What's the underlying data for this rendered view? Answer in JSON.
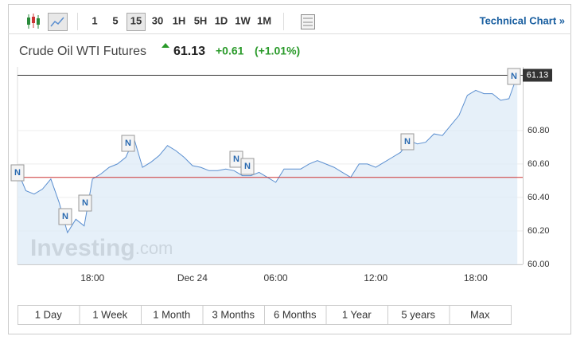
{
  "toolbar": {
    "intervals": [
      "1",
      "5",
      "15",
      "30",
      "1H",
      "5H",
      "1D",
      "1W",
      "1M"
    ],
    "selected": 2,
    "link": "Technical Chart »"
  },
  "header": {
    "instrument": "Crude Oil WTI Futures",
    "last": "61.13",
    "change": "+0.61",
    "change_pct": "(+1.01%)"
  },
  "chart_data": {
    "type": "area",
    "categories": [
      null,
      null,
      null,
      null,
      null,
      null,
      null,
      null,
      null,
      "18:00",
      null,
      null,
      null,
      null,
      null,
      null,
      null,
      null,
      null,
      null,
      null,
      "Dec 24",
      null,
      null,
      null,
      null,
      null,
      null,
      null,
      null,
      null,
      "06:00",
      null,
      null,
      null,
      null,
      null,
      null,
      null,
      null,
      null,
      null,
      null,
      "12:00",
      null,
      null,
      null,
      null,
      null,
      null,
      null,
      null,
      null,
      null,
      null,
      "18:00",
      null,
      null,
      null,
      null,
      null
    ],
    "values": [
      60.56,
      60.44,
      60.42,
      60.45,
      60.51,
      60.37,
      60.19,
      60.27,
      60.23,
      60.51,
      60.54,
      60.58,
      60.6,
      60.64,
      60.75,
      60.58,
      60.61,
      60.65,
      60.71,
      60.68,
      60.64,
      60.59,
      60.58,
      60.56,
      60.56,
      60.57,
      60.56,
      60.53,
      60.53,
      60.55,
      60.52,
      60.49,
      60.57,
      60.57,
      60.57,
      60.6,
      60.62,
      60.6,
      60.58,
      60.55,
      60.52,
      60.6,
      60.6,
      60.58,
      60.61,
      60.64,
      60.67,
      60.74,
      60.72,
      60.73,
      60.78,
      60.77,
      60.83,
      60.89,
      61.01,
      61.04,
      61.02,
      61.02,
      60.98,
      60.99,
      61.13
    ],
    "color": "#5b8fd0",
    "ylim": [
      60,
      61.18
    ],
    "yticks": [
      {
        "value": 60,
        "label": "60.00"
      },
      {
        "value": 60.2,
        "label": "60.20"
      },
      {
        "value": 60.4,
        "label": "60.40"
      },
      {
        "value": 60.6,
        "label": "60.60"
      },
      {
        "value": 60.8,
        "label": "60.80"
      }
    ],
    "grid": true,
    "reference_lines": [
      {
        "value": 61.13,
        "color": "#333333"
      },
      {
        "value": 60.52,
        "color": "#cc3333"
      }
    ],
    "annotations": [
      "N",
      "N",
      "N",
      "N",
      "N",
      "N",
      "N",
      "N"
    ],
    "watermark": [
      "Investing",
      ".com"
    ]
  },
  "range_buttons": [
    "1 Day",
    "1 Week",
    "1 Month",
    "3 Months",
    "6 Months",
    "1 Year",
    "5 years",
    "Max"
  ]
}
